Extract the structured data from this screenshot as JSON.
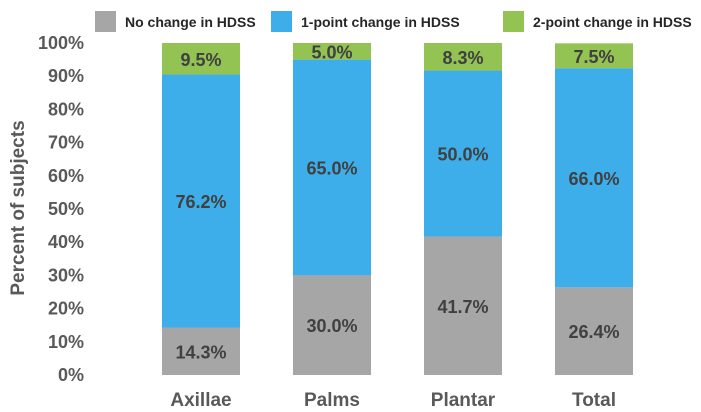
{
  "chart_data": {
    "type": "bar",
    "stacked": true,
    "categories": [
      "Axillae",
      "Palms",
      "Plantar",
      "Total"
    ],
    "series": [
      {
        "name": "No change in HDSS",
        "color": "#a6a6a6",
        "values": [
          14.3,
          30.0,
          41.7,
          26.4
        ],
        "labels": [
          "14.3%",
          "30.0%",
          "41.7%",
          "26.4%"
        ]
      },
      {
        "name": "1-point change in HDSS",
        "color": "#3daee9",
        "values": [
          76.2,
          65.0,
          50.0,
          66.0
        ],
        "labels": [
          "76.2%",
          "65.0%",
          "50.0%",
          "66.0%"
        ]
      },
      {
        "name": "2-point change in HDSS",
        "color": "#92c353",
        "values": [
          9.5,
          5.0,
          8.3,
          7.5
        ],
        "labels": [
          "9.5%",
          "5.0%",
          "8.3%",
          "7.5%"
        ]
      }
    ],
    "ylabel": "Percent of subjects",
    "xlabel": "",
    "ylim": [
      0,
      100
    ],
    "yticks": [
      "0%",
      "10%",
      "20%",
      "30%",
      "40%",
      "50%",
      "60%",
      "70%",
      "80%",
      "90%",
      "100%"
    ],
    "grid": false,
    "legend_position": "top"
  }
}
